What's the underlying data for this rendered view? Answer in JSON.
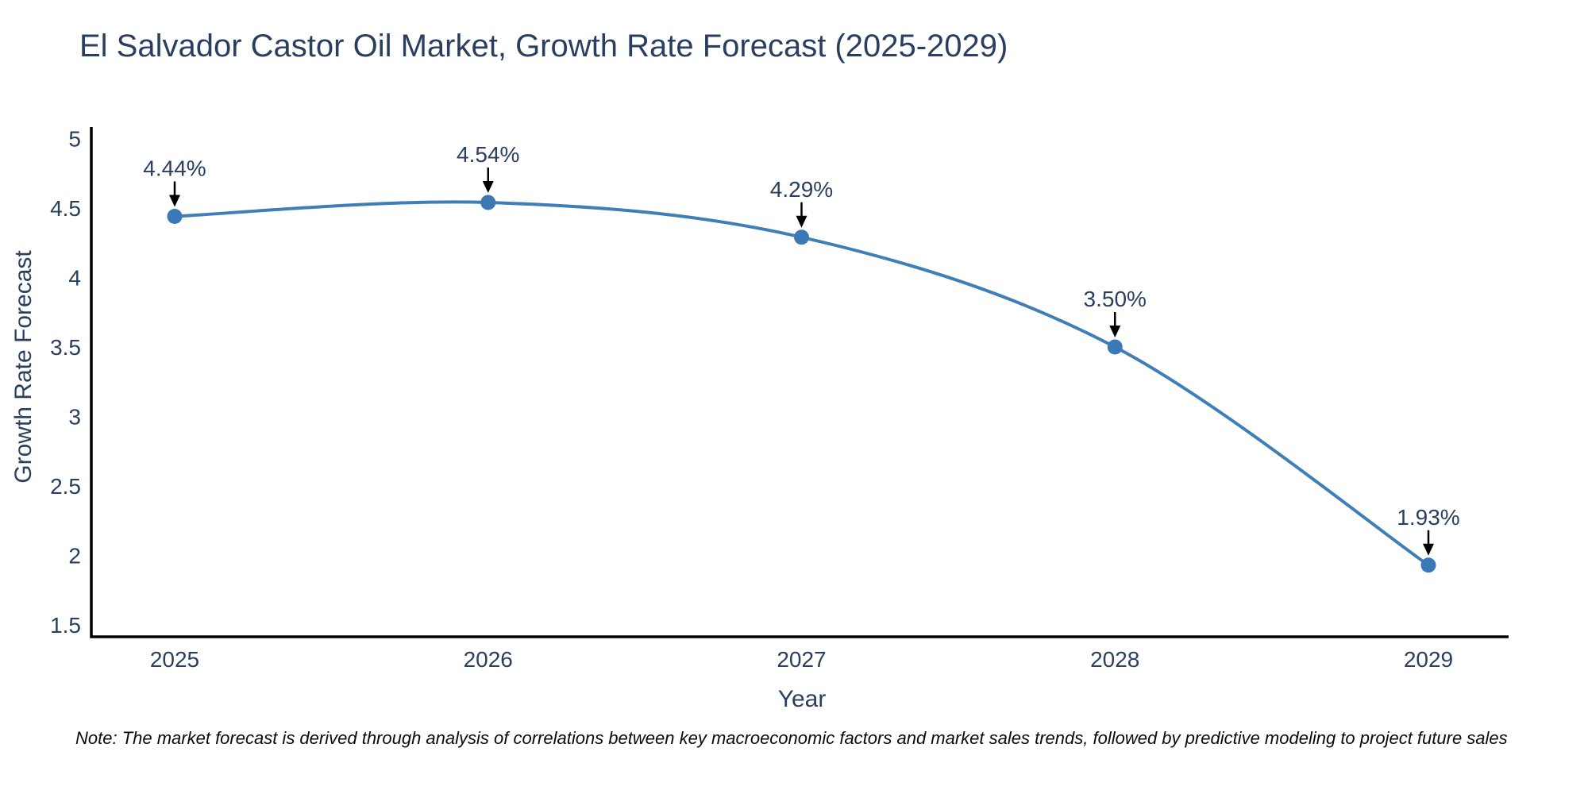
{
  "header": {
    "title": "El Salvador Castor Oil Market, Growth Rate Forecast (2025-2029)"
  },
  "footer": {
    "note": "Note: The market forecast is derived through analysis of correlations between key macroeconomic factors and market sales trends, followed by predictive modeling to project future sales"
  },
  "chart_data": {
    "type": "line",
    "title": "El Salvador Castor Oil Market, Growth Rate Forecast (2025-2029)",
    "xlabel": "Year",
    "ylabel": "Growth Rate Forecast",
    "x": [
      2025,
      2026,
      2027,
      2028,
      2029
    ],
    "xtick_labels": [
      "2025",
      "2026",
      "2027",
      "2028",
      "2029"
    ],
    "series": [
      {
        "name": "Growth Rate Forecast",
        "values": [
          4.44,
          4.54,
          4.29,
          3.5,
          1.93
        ]
      }
    ],
    "point_labels": [
      "4.44%",
      "4.54%",
      "4.29%",
      "3.50%",
      "1.93%"
    ],
    "yticks": [
      1.5,
      2,
      2.5,
      3,
      3.5,
      4,
      4.5,
      5
    ],
    "ytick_labels": [
      "1.5",
      "2",
      "2.5",
      "3",
      "3.5",
      "4",
      "4.5",
      "5"
    ],
    "ylim": [
      1.41,
      5.27
    ],
    "grid": false,
    "legend_position": "none",
    "line_shape": "spline",
    "line_color": "#3f7eb6",
    "marker_color": "#3a79b5",
    "annotation_arrow_color": "#000000",
    "axis_color": "#000000",
    "text_color": "#2a3f5f"
  }
}
